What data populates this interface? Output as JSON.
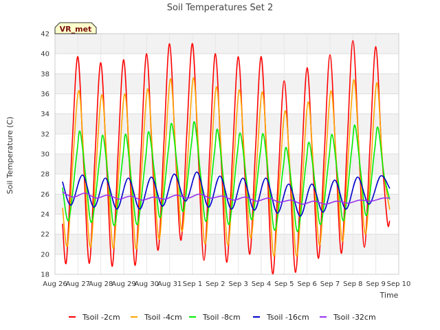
{
  "chart_data": {
    "type": "line",
    "title": "Soil Temperatures Set 2",
    "xlabel": "Time",
    "ylabel": "Soil Temperature (C)",
    "ylim": [
      18,
      42
    ],
    "yticks": [
      18,
      20,
      22,
      24,
      26,
      28,
      30,
      32,
      34,
      36,
      38,
      40,
      42
    ],
    "xlim": [
      0,
      15
    ],
    "xtick_labels": [
      "Aug 26",
      "Aug 27",
      "Aug 28",
      "Aug 29",
      "Aug 30",
      "Aug 31",
      "Sep 1",
      "Sep 2",
      "Sep 3",
      "Sep 4",
      "Sep 5",
      "Sep 6",
      "Sep 7",
      "Sep 8",
      "Sep 9",
      "Sep 10"
    ],
    "grid": true,
    "banded_background": true,
    "legend_position": "bottom",
    "station_tag": "VR_met",
    "series": [
      {
        "name": "Tsoil -2cm",
        "color": "#ff0000",
        "x": [
          0.33,
          0.5,
          0.75,
          1.0,
          1.25,
          1.5,
          1.75,
          2.0,
          2.25,
          2.5,
          2.75,
          3.0,
          3.25,
          3.5,
          3.75,
          4.0,
          4.25,
          4.5,
          4.75,
          5.0,
          5.25,
          5.5,
          5.75,
          6.0,
          6.25,
          6.5,
          6.75,
          7.0,
          7.25,
          7.5,
          7.75,
          8.0,
          8.25,
          8.5,
          8.75,
          9.0,
          9.25,
          9.5,
          9.75,
          10.0,
          10.25,
          10.5,
          10.75,
          11.0,
          11.25,
          11.5,
          11.75,
          12.0,
          12.25,
          12.5,
          12.75,
          13.0,
          13.25,
          13.5,
          13.75,
          14.0,
          14.25,
          14.5,
          14.6
        ],
        "values": [
          23.0,
          19.3,
          31.0,
          39.7,
          29.0,
          19.1,
          30.0,
          39.1,
          29.0,
          18.8,
          30.0,
          39.4,
          29.0,
          18.9,
          30.0,
          40.0,
          29.5,
          20.4,
          31.0,
          41.0,
          30.5,
          21.4,
          32.0,
          41.0,
          30.0,
          19.4,
          30.0,
          40.0,
          29.5,
          19.2,
          30.0,
          39.7,
          29.5,
          20.0,
          30.5,
          39.7,
          29.0,
          18.0,
          28.0,
          37.3,
          28.0,
          18.2,
          28.5,
          38.6,
          29.0,
          19.6,
          30.0,
          39.9,
          30.0,
          20.1,
          31.0,
          41.3,
          31.0,
          20.7,
          31.0,
          40.7,
          30.5,
          23.3,
          23.3
        ]
      },
      {
        "name": "Tsoil -4cm",
        "color": "#ffa500",
        "x": [
          0.33,
          0.55,
          0.8,
          1.05,
          1.3,
          1.55,
          1.8,
          2.05,
          2.3,
          2.55,
          2.8,
          3.05,
          3.3,
          3.55,
          3.8,
          4.05,
          4.3,
          4.55,
          4.8,
          5.05,
          5.3,
          5.55,
          5.8,
          6.05,
          6.3,
          6.55,
          6.8,
          7.05,
          7.3,
          7.55,
          7.8,
          8.05,
          8.3,
          8.55,
          8.8,
          9.05,
          9.3,
          9.55,
          9.8,
          10.05,
          10.3,
          10.55,
          10.8,
          11.05,
          11.3,
          11.55,
          11.8,
          12.05,
          12.3,
          12.55,
          12.8,
          13.05,
          13.3,
          13.55,
          13.8,
          14.05,
          14.3,
          14.6
        ],
        "values": [
          24.6,
          20.9,
          30.0,
          36.3,
          28.0,
          20.7,
          29.0,
          35.9,
          28.0,
          20.6,
          29.0,
          36.0,
          28.0,
          20.5,
          29.0,
          36.5,
          28.5,
          21.5,
          30.0,
          37.5,
          29.0,
          22.3,
          30.0,
          37.6,
          29.0,
          21.0,
          29.0,
          36.7,
          28.5,
          20.9,
          29.0,
          36.4,
          28.5,
          21.6,
          29.0,
          36.2,
          28.0,
          19.8,
          27.5,
          34.3,
          27.0,
          19.8,
          27.5,
          35.2,
          28.0,
          20.9,
          29.0,
          36.3,
          28.5,
          21.3,
          30.0,
          37.4,
          29.0,
          22.0,
          29.5,
          37.1,
          29.0,
          24.5
        ]
      },
      {
        "name": "Tsoil -8cm",
        "color": "#00ee00",
        "x": [
          0.33,
          0.6,
          0.95,
          1.1,
          1.35,
          1.6,
          1.95,
          2.1,
          2.35,
          2.6,
          2.95,
          3.1,
          3.35,
          3.6,
          3.95,
          4.1,
          4.35,
          4.6,
          4.95,
          5.1,
          5.35,
          5.6,
          5.95,
          6.1,
          6.35,
          6.6,
          6.95,
          7.1,
          7.35,
          7.6,
          7.95,
          8.1,
          8.35,
          8.6,
          8.95,
          9.1,
          9.35,
          9.6,
          9.95,
          10.1,
          10.35,
          10.6,
          10.95,
          11.1,
          11.35,
          11.6,
          11.95,
          12.1,
          12.35,
          12.6,
          12.95,
          13.1,
          13.35,
          13.6,
          13.95,
          14.1,
          14.35,
          14.6
        ],
        "values": [
          26.6,
          23.4,
          30.0,
          32.2,
          27.5,
          23.2,
          29.5,
          31.8,
          27.0,
          22.9,
          29.5,
          31.9,
          27.0,
          23.0,
          29.5,
          32.2,
          28.0,
          23.7,
          30.5,
          33.0,
          28.5,
          24.3,
          31.0,
          33.1,
          28.0,
          23.3,
          30.0,
          32.4,
          27.5,
          23.0,
          30.0,
          32.0,
          27.5,
          23.5,
          30.0,
          31.9,
          27.0,
          22.4,
          28.5,
          30.6,
          26.5,
          22.3,
          29.0,
          31.1,
          27.0,
          23.0,
          29.5,
          31.9,
          27.5,
          23.4,
          30.5,
          32.8,
          28.0,
          23.9,
          30.5,
          32.6,
          28.0,
          25.5
        ]
      },
      {
        "name": "Tsoil -16cm",
        "color": "#0000cc",
        "x": [
          0.33,
          0.7,
          1.2,
          1.7,
          2.2,
          2.7,
          3.2,
          3.7,
          4.2,
          4.7,
          5.2,
          5.7,
          6.2,
          6.7,
          7.2,
          7.7,
          8.2,
          8.7,
          9.2,
          9.7,
          10.2,
          10.7,
          11.2,
          11.7,
          12.2,
          12.7,
          13.2,
          13.7,
          14.2,
          14.6
        ],
        "values": [
          27.2,
          24.9,
          27.9,
          24.7,
          27.6,
          24.5,
          27.6,
          24.5,
          27.7,
          24.8,
          28.0,
          25.3,
          28.2,
          24.7,
          27.8,
          24.5,
          27.6,
          24.4,
          27.6,
          24.1,
          27.0,
          23.8,
          27.0,
          24.2,
          27.4,
          24.5,
          27.7,
          25.0,
          27.8,
          26.6
        ]
      },
      {
        "name": "Tsoil -32cm",
        "color": "#9933ee",
        "x": [
          0.33,
          0.8,
          1.3,
          1.8,
          2.3,
          2.8,
          3.3,
          3.8,
          4.3,
          4.8,
          5.3,
          5.8,
          6.3,
          6.8,
          7.3,
          7.8,
          8.3,
          8.8,
          9.3,
          9.8,
          10.3,
          10.8,
          11.3,
          11.8,
          12.3,
          12.8,
          13.3,
          13.8,
          14.3,
          14.6
        ],
        "values": [
          26.2,
          25.7,
          26.1,
          25.6,
          25.9,
          25.5,
          25.8,
          25.4,
          25.7,
          25.5,
          25.9,
          25.6,
          26.0,
          25.6,
          25.8,
          25.4,
          25.7,
          25.3,
          25.6,
          25.2,
          25.4,
          25.0,
          25.3,
          25.0,
          25.3,
          25.1,
          25.4,
          25.3,
          25.6,
          25.6
        ]
      }
    ]
  }
}
